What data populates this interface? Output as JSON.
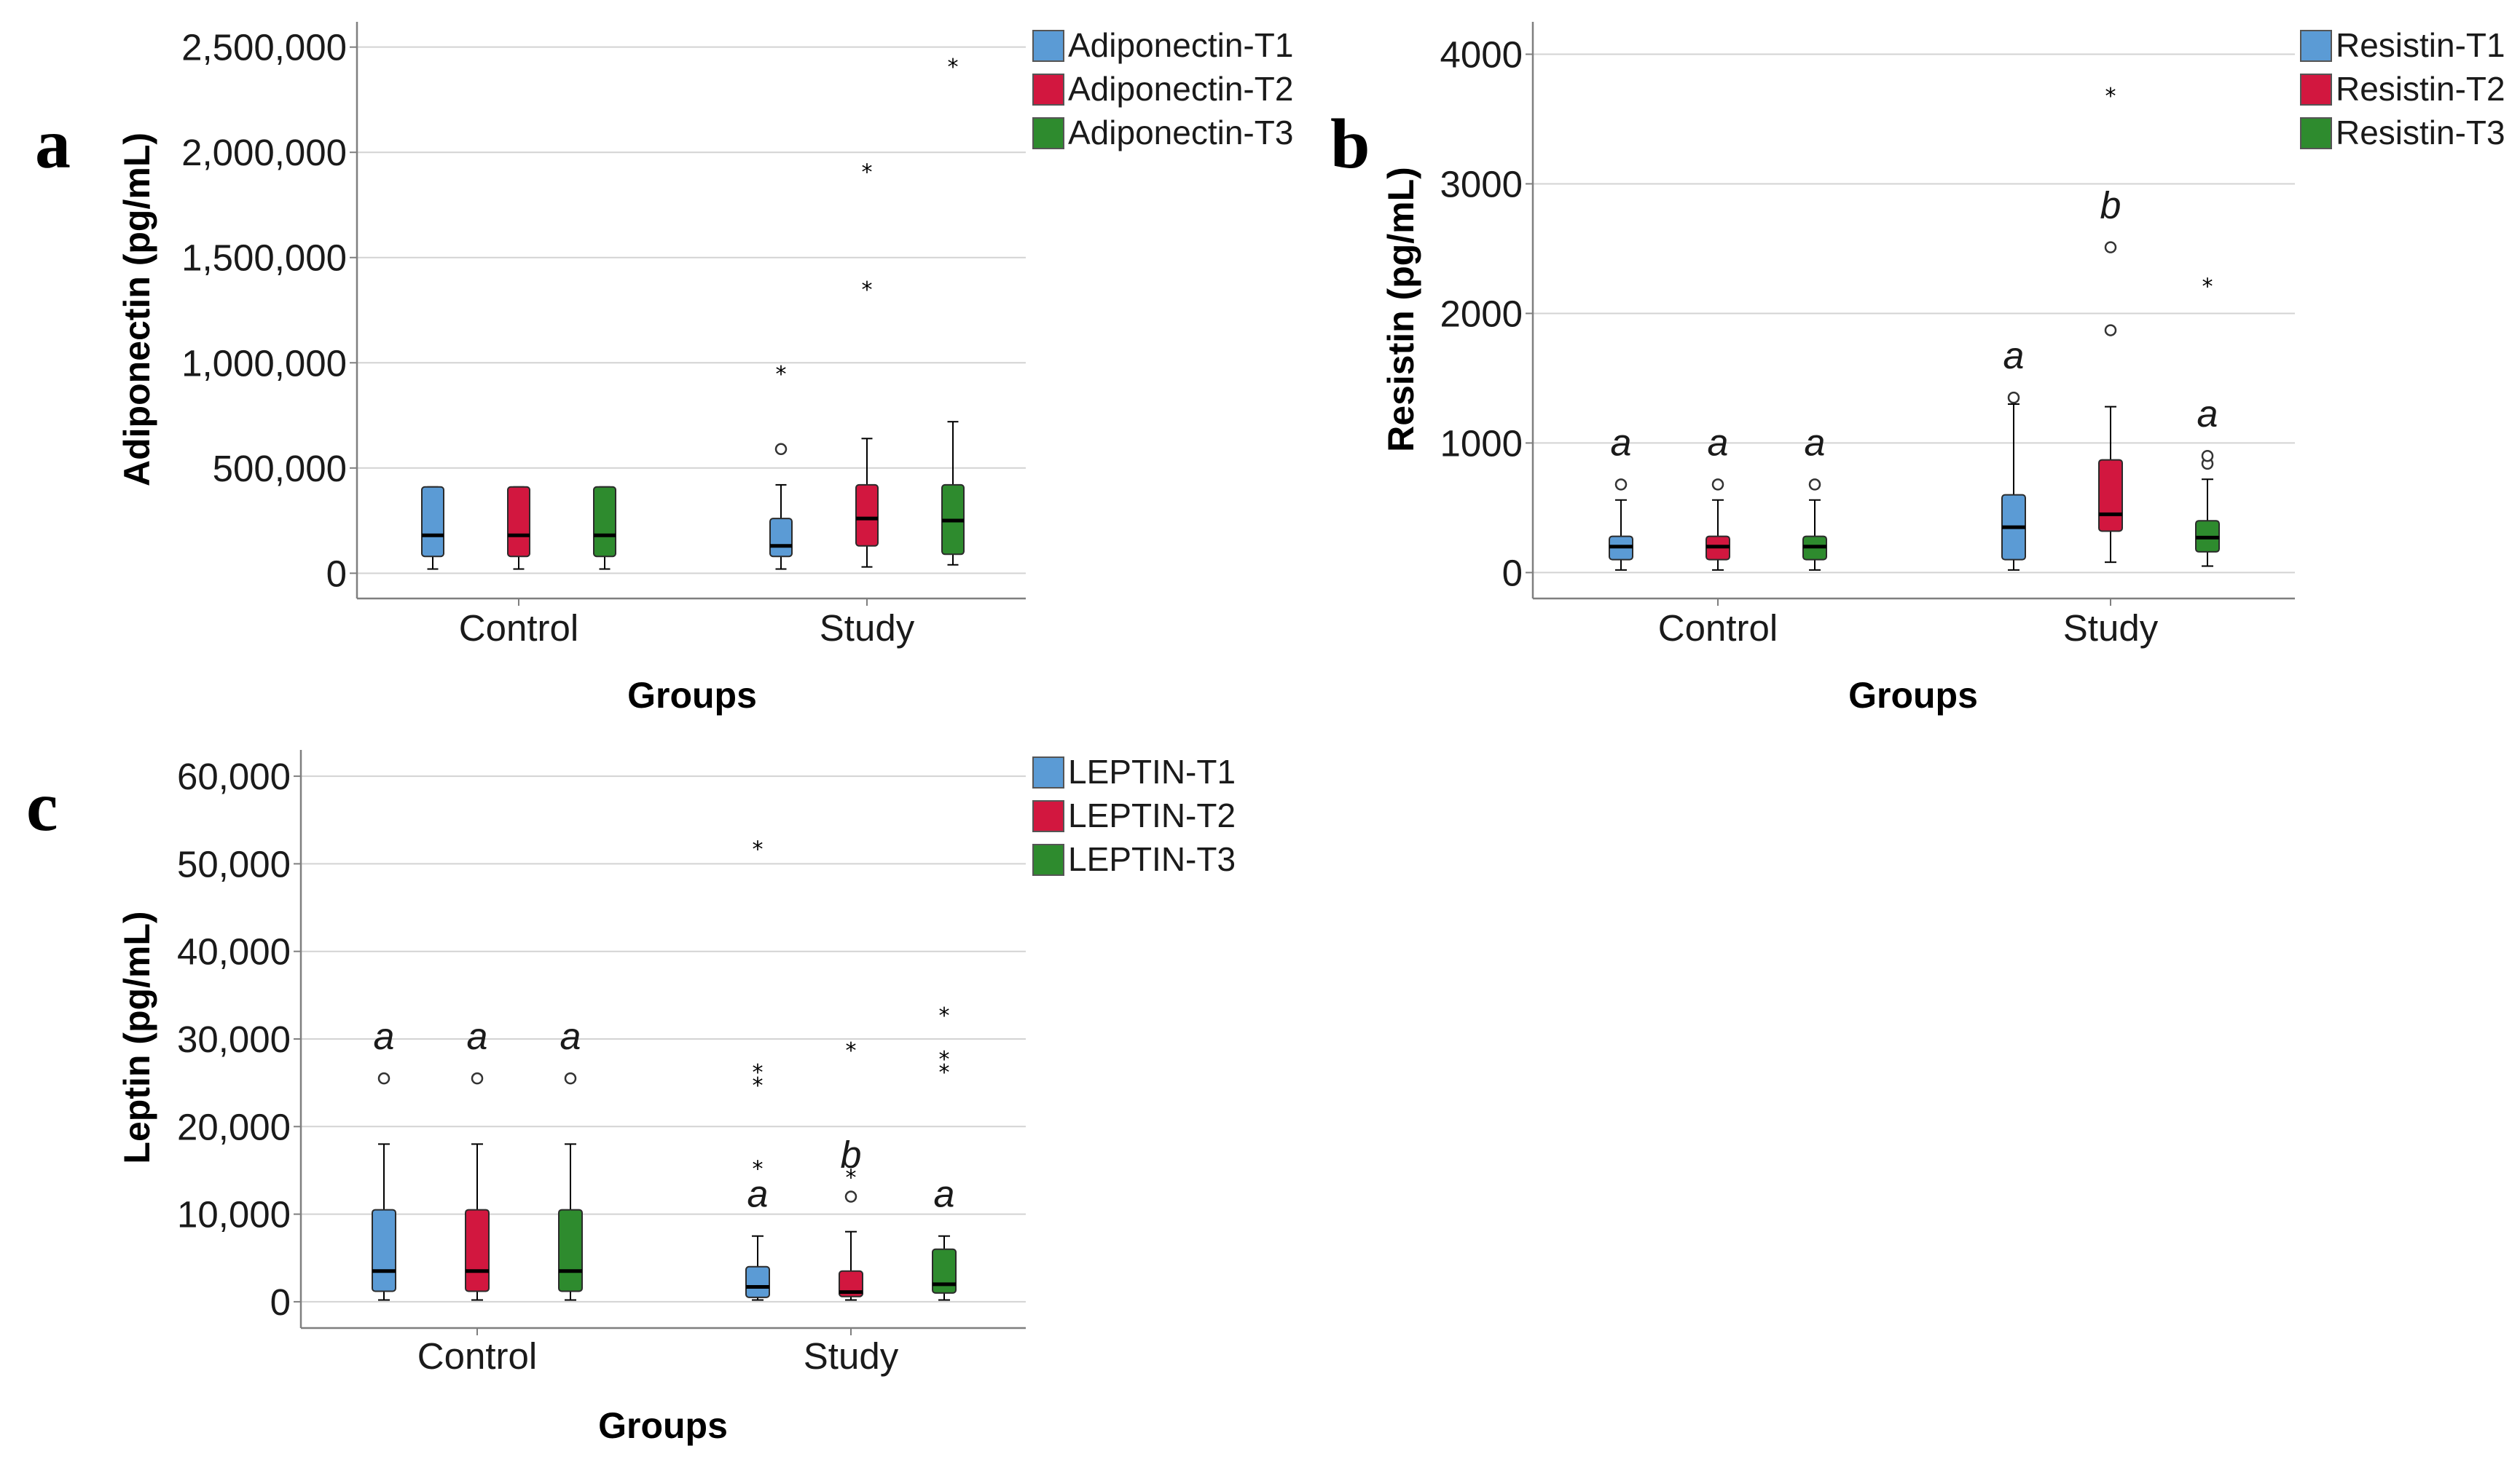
{
  "colors": {
    "T1": "#5b9bd5",
    "T2": "#d2173f",
    "T3": "#2e8b2e",
    "grid": "#d3d3d3",
    "axis": "#7f7f7f"
  },
  "chart_data": [
    {
      "panel": "a",
      "type": "boxplot",
      "xlabel": "Groups",
      "ylabel": "Adiponectin (pg/mL)",
      "ylim": [
        -120000,
        2620000
      ],
      "yticks": [
        0,
        500000,
        1000000,
        1500000,
        2000000,
        2500000
      ],
      "ytick_labels": [
        "0",
        "500,000",
        "1,000,000",
        "1,500,000",
        "2,000,000",
        "2,500,000"
      ],
      "groups": [
        "Control",
        "Study"
      ],
      "legend": [
        "Adiponectin-T1",
        "Adiponectin-T2",
        "Adiponectin-T3"
      ],
      "boxes": [
        {
          "group": "Control",
          "series": "T1",
          "min": 20000,
          "q1": 80000,
          "median": 180000,
          "q3": 410000,
          "max": 410000,
          "outliers": [],
          "extremes": [],
          "label": ""
        },
        {
          "group": "Control",
          "series": "T2",
          "min": 20000,
          "q1": 80000,
          "median": 180000,
          "q3": 410000,
          "max": 410000,
          "outliers": [],
          "extremes": [],
          "label": ""
        },
        {
          "group": "Control",
          "series": "T3",
          "min": 20000,
          "q1": 80000,
          "median": 180000,
          "q3": 410000,
          "max": 410000,
          "outliers": [],
          "extremes": [],
          "label": ""
        },
        {
          "group": "Study",
          "series": "T1",
          "min": 20000,
          "q1": 80000,
          "median": 130000,
          "q3": 260000,
          "max": 420000,
          "outliers": [
            590000
          ],
          "extremes": [
            960000
          ],
          "label": ""
        },
        {
          "group": "Study",
          "series": "T2",
          "min": 30000,
          "q1": 130000,
          "median": 260000,
          "q3": 420000,
          "max": 640000,
          "outliers": [],
          "extremes": [
            1360000,
            1920000
          ],
          "label": ""
        },
        {
          "group": "Study",
          "series": "T3",
          "min": 40000,
          "q1": 90000,
          "median": 250000,
          "q3": 420000,
          "max": 720000,
          "outliers": [],
          "extremes": [
            2420000
          ],
          "label": ""
        }
      ]
    },
    {
      "panel": "b",
      "type": "boxplot",
      "xlabel": "Groups",
      "ylabel": "Resistin (pg/mL)",
      "ylim": [
        -200,
        4250
      ],
      "yticks": [
        0,
        1000,
        2000,
        3000,
        4000
      ],
      "ytick_labels": [
        "0",
        "1000",
        "2000",
        "3000",
        "4000"
      ],
      "groups": [
        "Control",
        "Study"
      ],
      "legend": [
        "Resistin-T1",
        "Resistin-T2",
        "Resistin-T3"
      ],
      "boxes": [
        {
          "group": "Control",
          "series": "T1",
          "min": 20,
          "q1": 100,
          "median": 200,
          "q3": 280,
          "max": 560,
          "outliers": [
            680
          ],
          "extremes": [],
          "label": "a"
        },
        {
          "group": "Control",
          "series": "T2",
          "min": 20,
          "q1": 100,
          "median": 200,
          "q3": 280,
          "max": 560,
          "outliers": [
            680
          ],
          "extremes": [],
          "label": "a"
        },
        {
          "group": "Control",
          "series": "T3",
          "min": 20,
          "q1": 100,
          "median": 200,
          "q3": 280,
          "max": 560,
          "outliers": [
            680
          ],
          "extremes": [],
          "label": "a"
        },
        {
          "group": "Study",
          "series": "T1",
          "min": 20,
          "q1": 100,
          "median": 350,
          "q3": 600,
          "max": 1300,
          "outliers": [
            1350
          ],
          "extremes": [],
          "label": "a"
        },
        {
          "group": "Study",
          "series": "T2",
          "min": 80,
          "q1": 320,
          "median": 450,
          "q3": 870,
          "max": 1280,
          "outliers": [
            1870,
            2510
          ],
          "extremes": [
            3700
          ],
          "label": "b"
        },
        {
          "group": "Study",
          "series": "T3",
          "min": 50,
          "q1": 160,
          "median": 270,
          "q3": 400,
          "max": 720,
          "outliers": [
            840,
            900
          ],
          "extremes": [
            2230
          ],
          "label": "a"
        }
      ]
    },
    {
      "panel": "c",
      "type": "boxplot",
      "xlabel": "Groups",
      "ylabel": "Leptin (pg/mL)",
      "ylim": [
        -3000,
        63000
      ],
      "yticks": [
        0,
        10000,
        20000,
        30000,
        40000,
        50000,
        60000
      ],
      "ytick_labels": [
        "0",
        "10,000",
        "20,000",
        "30,000",
        "40,000",
        "50,000",
        "60,000"
      ],
      "groups": [
        "Control",
        "Study"
      ],
      "legend": [
        "LEPTIN-T1",
        "LEPTIN-T2",
        "LEPTIN-T3"
      ],
      "boxes": [
        {
          "group": "Control",
          "series": "T1",
          "min": 200,
          "q1": 1200,
          "median": 3500,
          "q3": 10500,
          "max": 18000,
          "outliers": [
            25500
          ],
          "extremes": [],
          "label": "a"
        },
        {
          "group": "Control",
          "series": "T2",
          "min": 200,
          "q1": 1200,
          "median": 3500,
          "q3": 10500,
          "max": 18000,
          "outliers": [
            25500
          ],
          "extremes": [],
          "label": "a"
        },
        {
          "group": "Control",
          "series": "T3",
          "min": 200,
          "q1": 1200,
          "median": 3500,
          "q3": 10500,
          "max": 18000,
          "outliers": [
            25500
          ],
          "extremes": [],
          "label": "a"
        },
        {
          "group": "Study",
          "series": "T1",
          "min": 200,
          "q1": 500,
          "median": 1700,
          "q3": 4000,
          "max": 7500,
          "outliers": [],
          "extremes": [
            15500,
            25000,
            26500,
            52000
          ],
          "label": "a"
        },
        {
          "group": "Study",
          "series": "T2",
          "min": 200,
          "q1": 600,
          "median": 1100,
          "q3": 3500,
          "max": 8000,
          "outliers": [
            12000
          ],
          "extremes": [
            14500,
            29000
          ],
          "label": "b"
        },
        {
          "group": "Study",
          "series": "T3",
          "min": 200,
          "q1": 1000,
          "median": 2000,
          "q3": 6000,
          "max": 7500,
          "outliers": [],
          "extremes": [
            26500,
            28000,
            33000
          ],
          "label": "a"
        }
      ]
    }
  ]
}
